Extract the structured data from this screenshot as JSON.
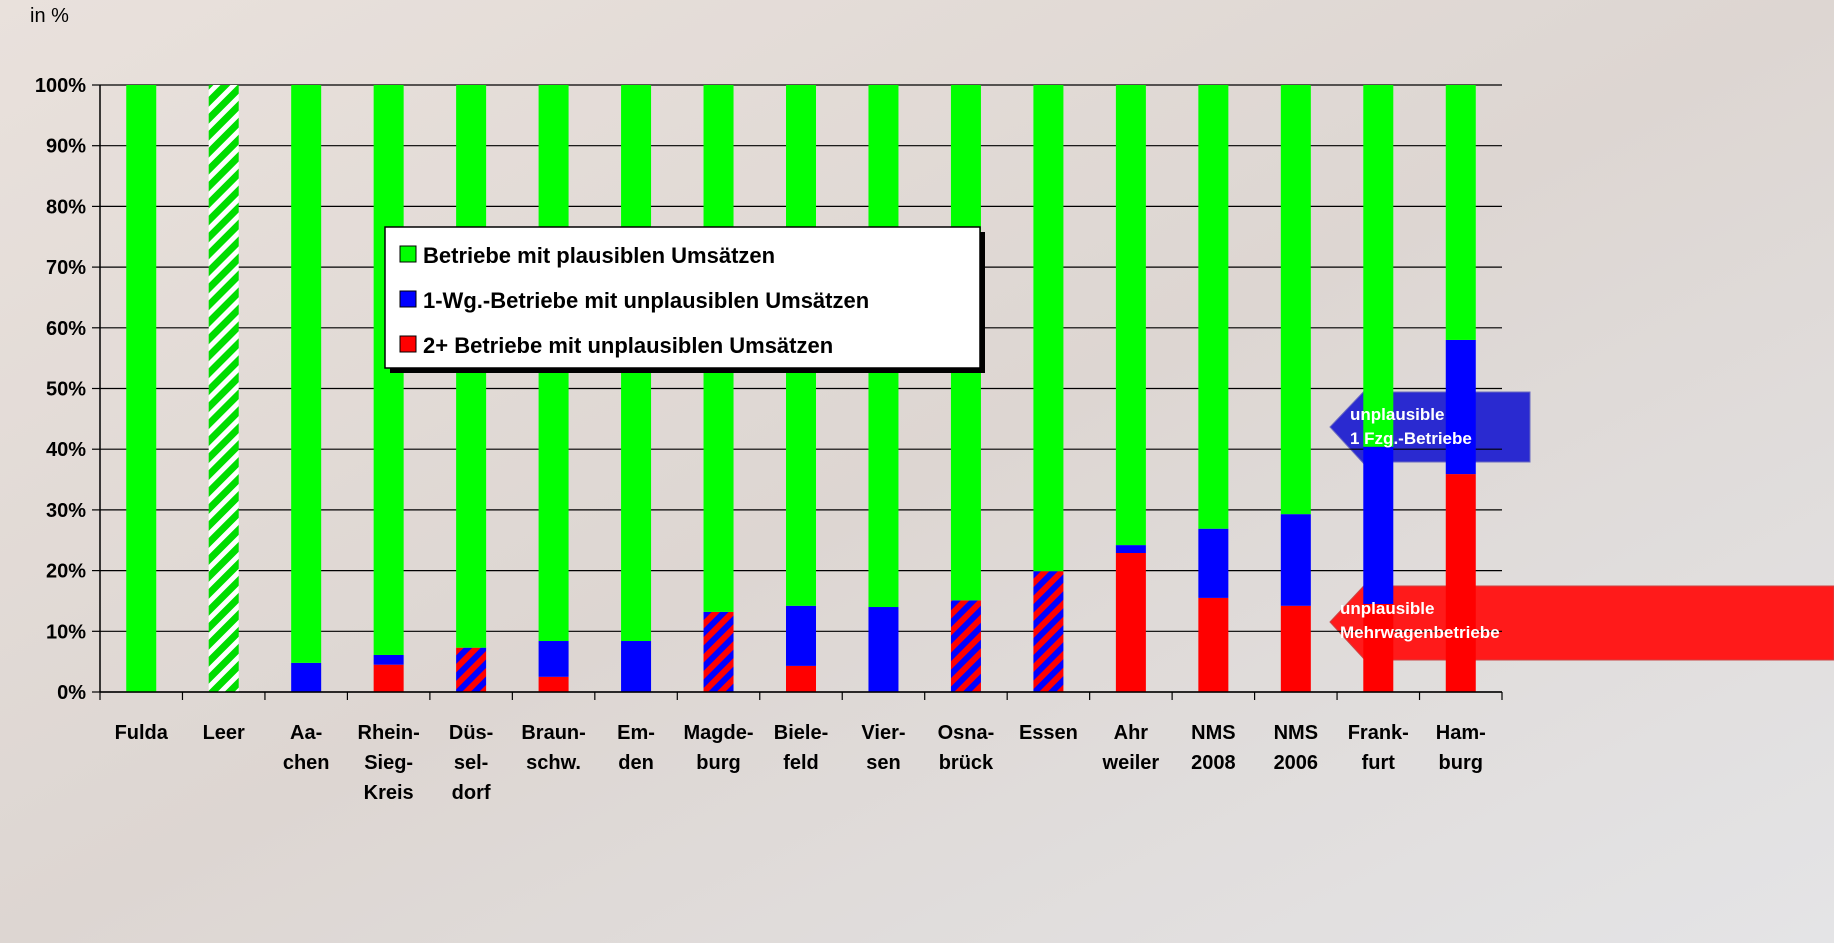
{
  "chart_data": {
    "type": "stacked-bar",
    "y_label": "in %",
    "categories": [
      [
        "Fulda"
      ],
      [
        "Leer"
      ],
      [
        "Aa-",
        "chen"
      ],
      [
        "Rhein-",
        "Sieg-",
        "Kreis"
      ],
      [
        "Düs-",
        "sel-",
        "dorf"
      ],
      [
        "Braun-",
        "schw."
      ],
      [
        "Em-",
        "den"
      ],
      [
        "Magde-",
        "burg"
      ],
      [
        "Biele-",
        "feld"
      ],
      [
        "Vier-",
        "sen"
      ],
      [
        "Osna-",
        "brück"
      ],
      [
        "Essen"
      ],
      [
        "Ahr",
        "weiler"
      ],
      [
        "NMS",
        "2008"
      ],
      [
        "NMS",
        "2006"
      ],
      [
        "Frank-",
        "furt"
      ],
      [
        "Ham-",
        "burg"
      ]
    ],
    "series": [
      {
        "name": "2+ Betriebe mit unplausiblen Umsätzen",
        "color": "#ff0000",
        "values": [
          0,
          0,
          0,
          4.5,
          7.3,
          2.5,
          0,
          13.2,
          4.3,
          0,
          15.1,
          19.9,
          22.9,
          15.5,
          14.2,
          14.5,
          35.9
        ],
        "hatch": [
          false,
          false,
          false,
          false,
          true,
          false,
          false,
          true,
          false,
          false,
          true,
          true,
          false,
          false,
          false,
          false,
          false
        ]
      },
      {
        "name": "1-Wg.-Betriebe mit unplausiblen Umsätzen",
        "color": "#0000ff",
        "values": [
          0,
          0,
          4.8,
          1.6,
          0,
          5.9,
          8.4,
          0,
          9.9,
          14.0,
          0,
          0,
          1.3,
          11.4,
          15.1,
          25.9,
          22.1
        ],
        "hatch": [
          false,
          false,
          false,
          false,
          false,
          false,
          false,
          false,
          false,
          false,
          false,
          false,
          false,
          false,
          false,
          false,
          false
        ]
      },
      {
        "name": "Betriebe mit plausiblen Umsätzen",
        "color": "#00ff00",
        "values": [
          100,
          100,
          95.2,
          93.9,
          92.7,
          91.6,
          91.6,
          86.8,
          85.8,
          86.0,
          84.9,
          80.1,
          75.8,
          73.1,
          70.7,
          59.6,
          42.0
        ],
        "hatch": [
          false,
          true,
          false,
          false,
          false,
          false,
          false,
          false,
          false,
          false,
          false,
          false,
          false,
          false,
          false,
          false,
          false
        ]
      }
    ],
    "ylim": [
      0,
      100
    ],
    "yticks": [
      {
        "value": 0,
        "label": "0%"
      },
      {
        "value": 10,
        "label": "10%"
      },
      {
        "value": 20,
        "label": "20%"
      },
      {
        "value": 30,
        "label": "30%"
      },
      {
        "value": 40,
        "label": "40%"
      },
      {
        "value": 50,
        "label": "50%"
      },
      {
        "value": 60,
        "label": "60%"
      },
      {
        "value": 70,
        "label": "70%"
      },
      {
        "value": 80,
        "label": "80%"
      },
      {
        "value": 90,
        "label": "90%"
      },
      {
        "value": 100,
        "label": "100%"
      }
    ],
    "grid": true,
    "annotations": [
      {
        "lines": [
          "unplausible",
          "1 Fzg.-Betriebe"
        ],
        "color": "#2a2ad0"
      },
      {
        "lines": [
          "unplausible",
          "Mehrwagenbetriebe"
        ],
        "color": "#ff0000"
      }
    ]
  }
}
